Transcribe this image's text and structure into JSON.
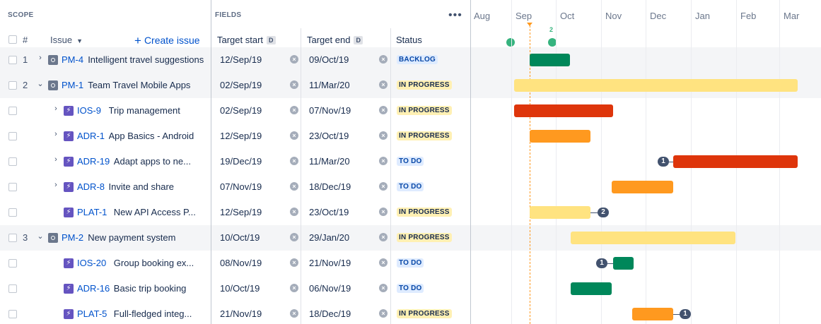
{
  "header": {
    "scope_label": "SCOPE",
    "fields_label": "FIELDS",
    "more": "•••",
    "hash": "#",
    "issue_label": "Issue",
    "create_label": "Create issue",
    "target_start": "Target start",
    "target_end": "Target end",
    "date_badge": "D",
    "status": "Status"
  },
  "timeline": {
    "months": [
      "Aug",
      "Sep",
      "Oct",
      "Nov",
      "Dec",
      "Jan",
      "Feb",
      "Mar"
    ],
    "release_count": "2",
    "today_color": "#ff991f",
    "release_color": "#36b37e"
  },
  "rows": [
    {
      "num": "1",
      "expand": "›",
      "type": "epic",
      "key": "PM-4",
      "title": "Intelligent travel suggestions",
      "start": "12/Sep/19",
      "end": "09/Oct/19",
      "status": "BACKLOG",
      "status_kind": "backlog",
      "bar_color": "#00875a"
    },
    {
      "num": "2",
      "expand": "⌄",
      "type": "epic",
      "key": "PM-1",
      "title": "Team Travel Mobile Apps",
      "start": "02/Sep/19",
      "end": "11/Mar/20",
      "status": "IN PROGRESS",
      "status_kind": "progress",
      "bar_color": "#ffe380"
    },
    {
      "num": "",
      "expand": "›",
      "type": "story",
      "key": "IOS-9",
      "title": "Trip management",
      "start": "02/Sep/19",
      "end": "07/Nov/19",
      "status": "IN PROGRESS",
      "status_kind": "progress",
      "bar_color": "#de350b"
    },
    {
      "num": "",
      "expand": "›",
      "type": "story",
      "key": "ADR-1",
      "title": "App Basics - Android",
      "start": "12/Sep/19",
      "end": "23/Oct/19",
      "status": "IN PROGRESS",
      "status_kind": "progress",
      "bar_color": "#ff991f"
    },
    {
      "num": "",
      "expand": "›",
      "type": "story",
      "key": "ADR-19",
      "title": "Adapt apps to ne...",
      "start": "19/Dec/19",
      "end": "11/Mar/20",
      "status": "TO DO",
      "status_kind": "todo",
      "bar_color": "#de350b",
      "dep_left": "1"
    },
    {
      "num": "",
      "expand": "›",
      "type": "story",
      "key": "ADR-8",
      "title": "Invite and share",
      "start": "07/Nov/19",
      "end": "18/Dec/19",
      "status": "TO DO",
      "status_kind": "todo",
      "bar_color": "#ff991f"
    },
    {
      "num": "",
      "expand": "",
      "type": "story",
      "key": "PLAT-1",
      "title": "New API Access P...",
      "start": "12/Sep/19",
      "end": "23/Oct/19",
      "status": "IN PROGRESS",
      "status_kind": "progress",
      "bar_color": "#ffe380",
      "dep_right": "2"
    },
    {
      "num": "3",
      "expand": "⌄",
      "type": "epic",
      "key": "PM-2",
      "title": "New payment system",
      "start": "10/Oct/19",
      "end": "29/Jan/20",
      "status": "IN PROGRESS",
      "status_kind": "progress",
      "bar_color": "#ffe380"
    },
    {
      "num": "",
      "expand": "",
      "type": "story",
      "key": "IOS-20",
      "title": "Group booking ex...",
      "start": "08/Nov/19",
      "end": "21/Nov/19",
      "status": "TO DO",
      "status_kind": "todo",
      "bar_color": "#00875a",
      "dep_left": "1"
    },
    {
      "num": "",
      "expand": "",
      "type": "story",
      "key": "ADR-16",
      "title": "Basic trip booking",
      "start": "10/Oct/19",
      "end": "06/Nov/19",
      "status": "TO DO",
      "status_kind": "todo",
      "bar_color": "#00875a"
    },
    {
      "num": "",
      "expand": "",
      "type": "story",
      "key": "PLAT-5",
      "title": "Full-fledged integ...",
      "start": "21/Nov/19",
      "end": "18/Dec/19",
      "status": "IN PROGRESS",
      "status_kind": "progress",
      "bar_color": "#ff991f",
      "dep_right": "1"
    }
  ]
}
